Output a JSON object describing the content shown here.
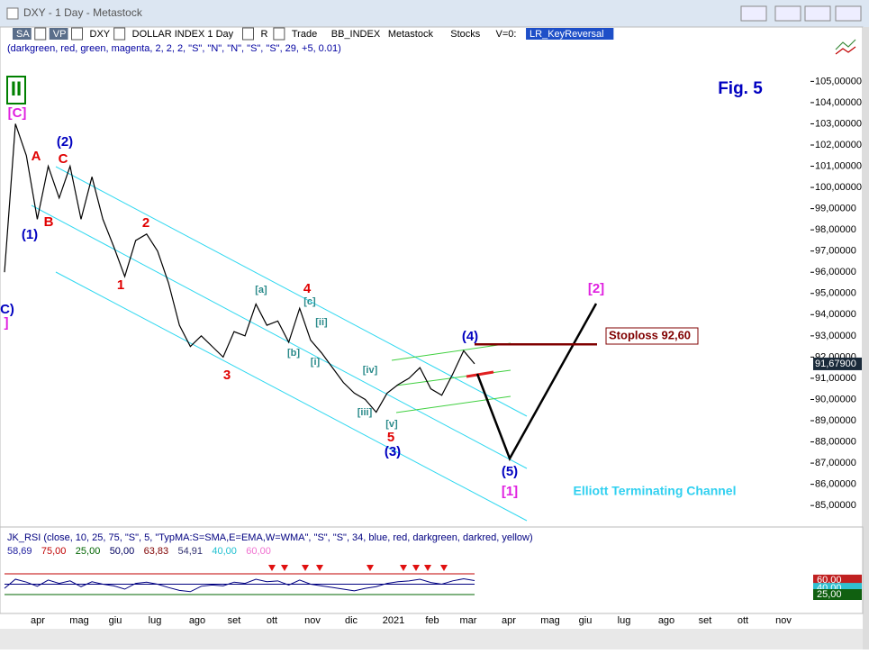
{
  "window": {
    "title": "DXY - 1 Day - Metastock"
  },
  "toolbar": {
    "items": [
      "SA",
      "VP",
      "DXY",
      "DOLLAR INDEX 1 Day",
      "R",
      "Trade",
      "BB_INDEX",
      "Metastock",
      "Stocks",
      "V=0:",
      "LR_KeyReversal"
    ]
  },
  "indicator_params": "(darkgreen, red, green, magenta, 2, 2, 2, \"S\", \"N\", \"N\", \"S\", \"S\", 29, +5, 0.01)",
  "price_chart": {
    "type": "line",
    "color": "#000000",
    "ylim": [
      84.2,
      106.8
    ],
    "yticks": [
      {
        "value": 85,
        "label": "85,00000"
      },
      {
        "value": 86,
        "label": "86,00000"
      },
      {
        "value": 87,
        "label": "87,00000"
      },
      {
        "value": 88,
        "label": "88,00000"
      },
      {
        "value": 89,
        "label": "89,00000"
      },
      {
        "value": 90,
        "label": "90,00000"
      },
      {
        "value": 91,
        "label": "91,00000"
      },
      {
        "value": 92,
        "label": "92,00000"
      },
      {
        "value": 93,
        "label": "93,00000"
      },
      {
        "value": 94,
        "label": "94,00000"
      },
      {
        "value": 95,
        "label": "95,00000"
      },
      {
        "value": 96,
        "label": "96,00000"
      },
      {
        "value": 97,
        "label": "97,00000"
      },
      {
        "value": 98,
        "label": "98,00000"
      },
      {
        "value": 99,
        "label": "99,00000"
      },
      {
        "value": 100,
        "label": "100,00000"
      },
      {
        "value": 101,
        "label": "101,00000"
      },
      {
        "value": 102,
        "label": "102,00000"
      },
      {
        "value": 103,
        "label": "103,00000"
      },
      {
        "value": 104,
        "label": "104,00000"
      },
      {
        "value": 105,
        "label": "105,00000"
      }
    ],
    "values": [
      96,
      103,
      101.5,
      98.5,
      101,
      99.5,
      101,
      98.5,
      100.5,
      98.5,
      97.2,
      95.8,
      97.5,
      97.8,
      97,
      95.5,
      93.5,
      92.5,
      93,
      92.5,
      92,
      93.2,
      93,
      94.5,
      93.5,
      93.7,
      92.7,
      94.3,
      92.8,
      92.2,
      91.5,
      90.8,
      90.3,
      90,
      89.4,
      90.3,
      90.7,
      91,
      91.5,
      90.5,
      90.2,
      91.2,
      92.3,
      91.68
    ],
    "last_price": {
      "value": 91.679,
      "label": "91,67900"
    },
    "stoploss": {
      "value": 92.6,
      "label": "Stoploss 92,60"
    },
    "annotations": [
      {
        "text": "II",
        "color": "#008000"
      },
      {
        "text": "[C]",
        "color": "#e020e0"
      },
      {
        "text": "(2)",
        "color": "#0000c0"
      },
      {
        "text": "A",
        "color": "#e00000"
      },
      {
        "text": "C",
        "color": "#e00000"
      },
      {
        "text": "B",
        "color": "#e00000"
      },
      {
        "text": "(1)",
        "color": "#0000c0"
      },
      {
        "text": "2",
        "color": "#e00000"
      },
      {
        "text": "1",
        "color": "#e00000"
      },
      {
        "text": "[a]",
        "color": "#2a8a8a"
      },
      {
        "text": "4",
        "color": "#e00000"
      },
      {
        "text": "[c]",
        "color": "#2a8a8a"
      },
      {
        "text": "[ii]",
        "color": "#2a8a8a"
      },
      {
        "text": "[b]",
        "color": "#2a8a8a"
      },
      {
        "text": "[i]",
        "color": "#2a8a8a"
      },
      {
        "text": "[iv]",
        "color": "#2a8a8a"
      },
      {
        "text": "[iii]",
        "color": "#2a8a8a"
      },
      {
        "text": "[v]",
        "color": "#2a8a8a"
      },
      {
        "text": "5",
        "color": "#e00000"
      },
      {
        "text": "(3)",
        "color": "#0000c0"
      },
      {
        "text": "3",
        "color": "#e00000"
      },
      {
        "text": "(4)",
        "color": "#0000c0"
      },
      {
        "text": "(5)",
        "color": "#0000c0"
      },
      {
        "text": "[1]",
        "color": "#e020e0"
      },
      {
        "text": "[2]",
        "color": "#e020e0"
      },
      {
        "text": "C)",
        "color": "#0000c0"
      },
      {
        "text": "]",
        "color": "#e020e0"
      },
      {
        "text": "Fig. 5",
        "color": "#0000c0"
      },
      {
        "text": "Elliott Terminating Channel",
        "color": "#30d0f0"
      }
    ]
  },
  "x_labels": [
    "apr",
    "mag",
    "giu",
    "lug",
    "ago",
    "set",
    "ott",
    "nov",
    "dic",
    "2021",
    "feb",
    "mar",
    "apr",
    "mag",
    "giu",
    "lug",
    "ago",
    "set",
    "ott",
    "nov"
  ],
  "rsi": {
    "type": "line",
    "color": "#000080",
    "title": "JK_RSI   (close, 10, 25, 75, \"S\", 5, \"TypMA:S=SMA,E=EMA,W=WMA\", \"S\", \"S\", 34, blue, red, darkgreen, darkred, yellow)",
    "readouts": [
      {
        "label": "58,69",
        "color": "#2020a0"
      },
      {
        "label": "75,00",
        "color": "#c00000"
      },
      {
        "label": "25,00",
        "color": "#006400"
      },
      {
        "label": "50,00",
        "color": "#000060"
      },
      {
        "label": "63,83",
        "color": "#800000"
      },
      {
        "label": "54,91",
        "color": "#303070"
      },
      {
        "label": "40,00",
        "color": "#20c0d0"
      },
      {
        "label": "60,00",
        "color": "#f070d0"
      }
    ],
    "ylim": [
      0,
      100
    ],
    "levels": [
      {
        "value": 75,
        "color": "#c00000"
      },
      {
        "value": 50,
        "color": "#000080"
      },
      {
        "value": 25,
        "color": "#006400"
      }
    ],
    "axis_labels": [
      {
        "value": 60,
        "label": "60,00",
        "color": "#c02020"
      },
      {
        "value": 40,
        "label": "40,00",
        "color": "#30c0d0"
      },
      {
        "value": 25,
        "label": "25,00",
        "color": "#106010"
      }
    ],
    "values": [
      40,
      62,
      55,
      45,
      60,
      52,
      58,
      44,
      56,
      50,
      46,
      38,
      52,
      55,
      50,
      42,
      35,
      32,
      45,
      48,
      46,
      55,
      52,
      62,
      56,
      58,
      48,
      60,
      50,
      46,
      42,
      38,
      34,
      40,
      44,
      52,
      56,
      58,
      62,
      54,
      50,
      58,
      63,
      58.69
    ]
  }
}
